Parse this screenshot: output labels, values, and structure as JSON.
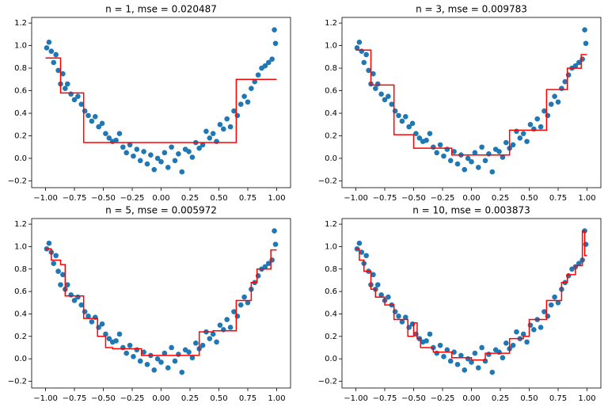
{
  "chart_data": [
    {
      "type": "scatter",
      "title": "n = 1, mse = 0.020487",
      "xlim": [
        -1.12,
        1.12
      ],
      "ylim": [
        -0.26,
        1.25
      ],
      "xticks": [
        {
          "value": -1,
          "label": "−1.00"
        },
        {
          "value": -0.75,
          "label": "−0.75"
        },
        {
          "value": -0.5,
          "label": "−0.50"
        },
        {
          "value": -0.25,
          "label": "−0.25"
        },
        {
          "value": 0,
          "label": "0.00"
        },
        0.25,
        {
          "value": 0.5,
          "label": "0.50"
        },
        0.75,
        {
          "value": 1,
          "label": "1.00"
        }
      ],
      "yticks": [
        {
          "value": -0.2,
          "label": "−0.2"
        },
        {
          "value": 0,
          "label": "0.0"
        },
        0.2,
        0.4,
        0.6,
        0.8,
        {
          "value": 1,
          "label": "1.0"
        },
        1.2
      ],
      "series": [
        {
          "type": "scatter",
          "color": "#1f77b4",
          "x": [
            -0.99,
            -0.97,
            -0.95,
            -0.93,
            -0.91,
            -0.89,
            -0.87,
            -0.85,
            -0.83,
            -0.81,
            -0.78,
            -0.75,
            -0.72,
            -0.69,
            -0.66,
            -0.63,
            -0.6,
            -0.57,
            -0.54,
            -0.51,
            -0.48,
            -0.45,
            -0.42,
            -0.39,
            -0.36,
            -0.33,
            -0.3,
            -0.27,
            -0.24,
            -0.21,
            -0.18,
            -0.15,
            -0.12,
            -0.09,
            -0.06,
            -0.03,
            0,
            0.03,
            0.06,
            0.09,
            0.12,
            0.15,
            0.18,
            0.21,
            0.24,
            0.27,
            0.3,
            0.33,
            0.36,
            0.39,
            0.42,
            0.45,
            0.48,
            0.51,
            0.54,
            0.57,
            0.6,
            0.63,
            0.66,
            0.69,
            0.72,
            0.75,
            0.78,
            0.81,
            0.84,
            0.87,
            0.9,
            0.93,
            0.96,
            0.98,
            0.99
          ],
          "values": [
            0.98,
            1.03,
            0.95,
            0.85,
            0.92,
            0.78,
            0.66,
            0.75,
            0.62,
            0.66,
            0.57,
            0.52,
            0.55,
            0.48,
            0.42,
            0.38,
            0.33,
            0.37,
            0.28,
            0.31,
            0.22,
            0.18,
            0.15,
            0.16,
            0.22,
            0.1,
            0.05,
            0.12,
            0.02,
            0.08,
            -0.02,
            0.06,
            -0.05,
            0.03,
            -0.1,
            0,
            -0.03,
            0.05,
            -0.08,
            0.1,
            -0.02,
            0.04,
            -0.12,
            0.08,
            0.06,
            0.01,
            0.14,
            0.09,
            0.12,
            0.24,
            0.18,
            0.22,
            0.15,
            0.3,
            0.26,
            0.35,
            0.28,
            0.42,
            0.38,
            0.48,
            0.55,
            0.5,
            0.62,
            0.68,
            0.74,
            0.8,
            0.82,
            0.85,
            0.88,
            1.14,
            1.02
          ]
        },
        {
          "type": "line",
          "color": "#ff0000",
          "x": [
            -1,
            -0.87,
            -0.87,
            -0.67,
            -0.67,
            0.65,
            0.65,
            1
          ],
          "values": [
            0.89,
            0.89,
            0.58,
            0.58,
            0.14,
            0.14,
            0.7,
            0.7
          ]
        }
      ]
    },
    {
      "type": "scatter",
      "title": "n = 3, mse = 0.009783",
      "xlim": [
        -1.12,
        1.12
      ],
      "ylim": [
        -0.26,
        1.25
      ],
      "xticks": [
        {
          "value": -1,
          "label": "−1.00"
        },
        {
          "value": -0.75,
          "label": "−0.75"
        },
        {
          "value": -0.5,
          "label": "−0.50"
        },
        {
          "value": -0.25,
          "label": "−0.25"
        },
        {
          "value": 0,
          "label": "0.00"
        },
        0.25,
        {
          "value": 0.5,
          "label": "0.50"
        },
        0.75,
        {
          "value": 1,
          "label": "1.00"
        }
      ],
      "yticks": [
        {
          "value": -0.2,
          "label": "−0.2"
        },
        {
          "value": 0,
          "label": "0.0"
        },
        0.2,
        0.4,
        0.6,
        0.8,
        {
          "value": 1,
          "label": "1.0"
        },
        1.2
      ],
      "series": [
        {
          "type": "scatter",
          "color": "#1f77b4",
          "x": [
            -0.99,
            -0.97,
            -0.95,
            -0.93,
            -0.91,
            -0.89,
            -0.87,
            -0.85,
            -0.83,
            -0.81,
            -0.78,
            -0.75,
            -0.72,
            -0.69,
            -0.66,
            -0.63,
            -0.6,
            -0.57,
            -0.54,
            -0.51,
            -0.48,
            -0.45,
            -0.42,
            -0.39,
            -0.36,
            -0.33,
            -0.3,
            -0.27,
            -0.24,
            -0.21,
            -0.18,
            -0.15,
            -0.12,
            -0.09,
            -0.06,
            -0.03,
            0,
            0.03,
            0.06,
            0.09,
            0.12,
            0.15,
            0.18,
            0.21,
            0.24,
            0.27,
            0.3,
            0.33,
            0.36,
            0.39,
            0.42,
            0.45,
            0.48,
            0.51,
            0.54,
            0.57,
            0.6,
            0.63,
            0.66,
            0.69,
            0.72,
            0.75,
            0.78,
            0.81,
            0.84,
            0.87,
            0.9,
            0.93,
            0.96,
            0.98,
            0.99
          ],
          "values": [
            0.98,
            1.03,
            0.95,
            0.85,
            0.92,
            0.78,
            0.66,
            0.75,
            0.62,
            0.66,
            0.57,
            0.52,
            0.55,
            0.48,
            0.42,
            0.38,
            0.33,
            0.37,
            0.28,
            0.31,
            0.22,
            0.18,
            0.15,
            0.16,
            0.22,
            0.1,
            0.05,
            0.12,
            0.02,
            0.08,
            -0.02,
            0.06,
            -0.05,
            0.03,
            -0.1,
            0,
            -0.03,
            0.05,
            -0.08,
            0.1,
            -0.02,
            0.04,
            -0.12,
            0.08,
            0.06,
            0.01,
            0.14,
            0.09,
            0.12,
            0.24,
            0.18,
            0.22,
            0.15,
            0.3,
            0.26,
            0.35,
            0.28,
            0.42,
            0.38,
            0.48,
            0.55,
            0.5,
            0.62,
            0.68,
            0.74,
            0.8,
            0.82,
            0.85,
            0.88,
            1.14,
            1.02
          ]
        },
        {
          "type": "line",
          "color": "#ff0000",
          "x": [
            -1,
            -0.87,
            -0.87,
            -0.67,
            -0.67,
            -0.5,
            -0.5,
            -0.17,
            -0.17,
            0.33,
            0.33,
            0.65,
            0.65,
            0.83,
            0.83,
            0.95,
            0.95,
            1
          ],
          "values": [
            0.96,
            0.96,
            0.65,
            0.65,
            0.21,
            0.21,
            0.09,
            0.09,
            0.03,
            0.03,
            0.25,
            0.25,
            0.61,
            0.61,
            0.8,
            0.8,
            0.92,
            0.92
          ]
        }
      ]
    },
    {
      "type": "scatter",
      "title": "n = 5, mse = 0.005972",
      "xlim": [
        -1.12,
        1.12
      ],
      "ylim": [
        -0.26,
        1.25
      ],
      "xticks": [
        {
          "value": -1,
          "label": "−1.00"
        },
        {
          "value": -0.75,
          "label": "−0.75"
        },
        {
          "value": -0.5,
          "label": "−0.50"
        },
        {
          "value": -0.25,
          "label": "−0.25"
        },
        {
          "value": 0,
          "label": "0.00"
        },
        0.25,
        {
          "value": 0.5,
          "label": "0.50"
        },
        0.75,
        {
          "value": 1,
          "label": "1.00"
        }
      ],
      "yticks": [
        {
          "value": -0.2,
          "label": "−0.2"
        },
        {
          "value": 0,
          "label": "0.0"
        },
        0.2,
        0.4,
        0.6,
        0.8,
        {
          "value": 1,
          "label": "1.0"
        },
        1.2
      ],
      "series": [
        {
          "type": "scatter",
          "color": "#1f77b4",
          "x": [
            -0.99,
            -0.97,
            -0.95,
            -0.93,
            -0.91,
            -0.89,
            -0.87,
            -0.85,
            -0.83,
            -0.81,
            -0.78,
            -0.75,
            -0.72,
            -0.69,
            -0.66,
            -0.63,
            -0.6,
            -0.57,
            -0.54,
            -0.51,
            -0.48,
            -0.45,
            -0.42,
            -0.39,
            -0.36,
            -0.33,
            -0.3,
            -0.27,
            -0.24,
            -0.21,
            -0.18,
            -0.15,
            -0.12,
            -0.09,
            -0.06,
            -0.03,
            0,
            0.03,
            0.06,
            0.09,
            0.12,
            0.15,
            0.18,
            0.21,
            0.24,
            0.27,
            0.3,
            0.33,
            0.36,
            0.39,
            0.42,
            0.45,
            0.48,
            0.51,
            0.54,
            0.57,
            0.6,
            0.63,
            0.66,
            0.69,
            0.72,
            0.75,
            0.78,
            0.81,
            0.84,
            0.87,
            0.9,
            0.93,
            0.96,
            0.98,
            0.99
          ],
          "values": [
            0.98,
            1.03,
            0.95,
            0.85,
            0.92,
            0.78,
            0.66,
            0.75,
            0.62,
            0.66,
            0.57,
            0.52,
            0.55,
            0.48,
            0.42,
            0.38,
            0.33,
            0.37,
            0.28,
            0.31,
            0.22,
            0.18,
            0.15,
            0.16,
            0.22,
            0.1,
            0.05,
            0.12,
            0.02,
            0.08,
            -0.02,
            0.06,
            -0.05,
            0.03,
            -0.1,
            0,
            -0.03,
            0.05,
            -0.08,
            0.1,
            -0.02,
            0.04,
            -0.12,
            0.08,
            0.06,
            0.01,
            0.14,
            0.09,
            0.12,
            0.24,
            0.18,
            0.22,
            0.15,
            0.3,
            0.26,
            0.35,
            0.28,
            0.42,
            0.38,
            0.48,
            0.55,
            0.5,
            0.62,
            0.68,
            0.74,
            0.8,
            0.82,
            0.85,
            0.88,
            1.14,
            1.02
          ]
        },
        {
          "type": "line",
          "color": "#ff0000",
          "x": [
            -1,
            -0.95,
            -0.95,
            -0.87,
            -0.87,
            -0.83,
            -0.83,
            -0.67,
            -0.67,
            -0.55,
            -0.55,
            -0.48,
            -0.48,
            -0.42,
            -0.42,
            -0.17,
            -0.17,
            0.33,
            0.33,
            0.45,
            0.45,
            0.65,
            0.65,
            0.78,
            0.78,
            0.83,
            0.83,
            0.95,
            0.95,
            1
          ],
          "values": [
            0.98,
            0.98,
            0.88,
            0.88,
            0.84,
            0.84,
            0.56,
            0.56,
            0.36,
            0.36,
            0.2,
            0.2,
            0.1,
            0.1,
            0.09,
            0.09,
            0.03,
            0.03,
            0.24,
            0.24,
            0.25,
            0.25,
            0.52,
            0.52,
            0.68,
            0.68,
            0.8,
            0.8,
            0.97,
            0.97
          ]
        }
      ]
    },
    {
      "type": "scatter",
      "title": "n = 10, mse = 0.003873",
      "xlim": [
        -1.12,
        1.12
      ],
      "ylim": [
        -0.26,
        1.25
      ],
      "xticks": [
        {
          "value": -1,
          "label": "−1.00"
        },
        {
          "value": -0.75,
          "label": "−0.75"
        },
        {
          "value": -0.5,
          "label": "−0.50"
        },
        {
          "value": -0.25,
          "label": "−0.25"
        },
        {
          "value": 0,
          "label": "0.00"
        },
        0.25,
        {
          "value": 0.5,
          "label": "0.50"
        },
        0.75,
        {
          "value": 1,
          "label": "1.00"
        }
      ],
      "yticks": [
        {
          "value": -0.2,
          "label": "−0.2"
        },
        {
          "value": 0,
          "label": "0.0"
        },
        0.2,
        0.4,
        0.6,
        0.8,
        {
          "value": 1,
          "label": "1.0"
        },
        1.2
      ],
      "series": [
        {
          "type": "scatter",
          "color": "#1f77b4",
          "x": [
            -0.99,
            -0.97,
            -0.95,
            -0.93,
            -0.91,
            -0.89,
            -0.87,
            -0.85,
            -0.83,
            -0.81,
            -0.78,
            -0.75,
            -0.72,
            -0.69,
            -0.66,
            -0.63,
            -0.6,
            -0.57,
            -0.54,
            -0.51,
            -0.48,
            -0.45,
            -0.42,
            -0.39,
            -0.36,
            -0.33,
            -0.3,
            -0.27,
            -0.24,
            -0.21,
            -0.18,
            -0.15,
            -0.12,
            -0.09,
            -0.06,
            -0.03,
            0,
            0.03,
            0.06,
            0.09,
            0.12,
            0.15,
            0.18,
            0.21,
            0.24,
            0.27,
            0.3,
            0.33,
            0.36,
            0.39,
            0.42,
            0.45,
            0.48,
            0.51,
            0.54,
            0.57,
            0.6,
            0.63,
            0.66,
            0.69,
            0.72,
            0.75,
            0.78,
            0.81,
            0.84,
            0.87,
            0.9,
            0.93,
            0.96,
            0.98,
            0.99
          ],
          "values": [
            0.98,
            1.03,
            0.95,
            0.85,
            0.92,
            0.78,
            0.66,
            0.75,
            0.62,
            0.66,
            0.57,
            0.52,
            0.55,
            0.48,
            0.42,
            0.38,
            0.33,
            0.37,
            0.28,
            0.31,
            0.22,
            0.18,
            0.15,
            0.16,
            0.22,
            0.1,
            0.05,
            0.12,
            0.02,
            0.08,
            -0.02,
            0.06,
            -0.05,
            0.03,
            -0.1,
            0,
            -0.03,
            0.05,
            -0.08,
            0.1,
            -0.02,
            0.04,
            -0.12,
            0.08,
            0.06,
            0.01,
            0.14,
            0.09,
            0.12,
            0.24,
            0.18,
            0.22,
            0.15,
            0.3,
            0.26,
            0.35,
            0.28,
            0.42,
            0.38,
            0.48,
            0.55,
            0.5,
            0.62,
            0.68,
            0.74,
            0.8,
            0.82,
            0.85,
            0.88,
            1.14,
            1.02
          ]
        },
        {
          "type": "line",
          "color": "#ff0000",
          "x": [
            -1,
            -0.97,
            -0.97,
            -0.93,
            -0.93,
            -0.87,
            -0.87,
            -0.83,
            -0.83,
            -0.75,
            -0.75,
            -0.67,
            -0.67,
            -0.55,
            -0.55,
            -0.5,
            -0.5,
            -0.47,
            -0.47,
            -0.44,
            -0.44,
            -0.33,
            -0.33,
            -0.17,
            -0.17,
            0,
            0,
            0.12,
            0.12,
            0.33,
            0.33,
            0.45,
            0.45,
            0.5,
            0.5,
            0.65,
            0.65,
            0.78,
            0.78,
            0.83,
            0.83,
            0.9,
            0.9,
            0.96,
            0.96,
            0.98,
            0.98,
            1
          ],
          "values": [
            0.98,
            0.98,
            0.88,
            0.88,
            0.78,
            0.78,
            0.62,
            0.62,
            0.55,
            0.55,
            0.48,
            0.48,
            0.35,
            0.35,
            0.2,
            0.2,
            0.32,
            0.32,
            0.18,
            0.18,
            0.1,
            0.1,
            0.06,
            0.06,
            0.01,
            0.01,
            -0.01,
            -0.01,
            0.05,
            0.05,
            0.18,
            0.18,
            0.2,
            0.2,
            0.35,
            0.35,
            0.52,
            0.52,
            0.68,
            0.68,
            0.75,
            0.75,
            0.83,
            0.83,
            1.14,
            1.14,
            0.92,
            0.92
          ]
        }
      ]
    }
  ]
}
